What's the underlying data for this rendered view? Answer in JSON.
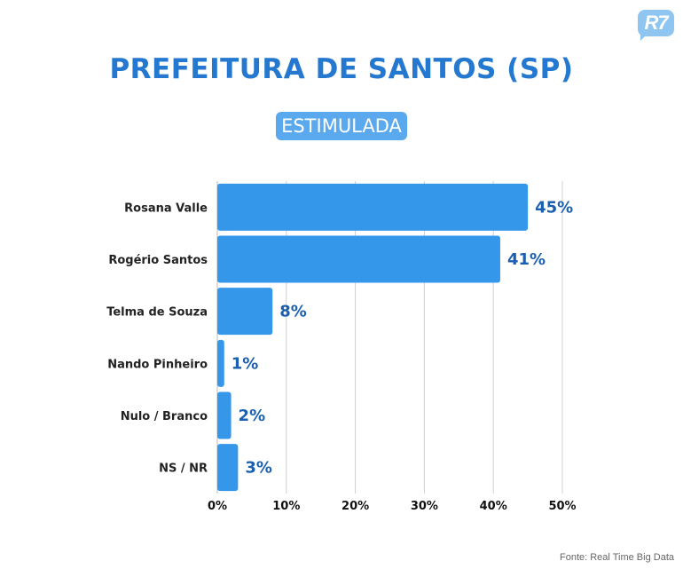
{
  "logo": {
    "text": "R7"
  },
  "title": "PREFEITURA DE SANTOS (SP)",
  "subtitle": "ESTIMULADA",
  "source": "Fonte: Real Time Big Data",
  "colors": {
    "bar": "#3597ea",
    "title": "#2478d0",
    "label": "#1a5fb0",
    "grid": "#d0d0d0"
  },
  "chart_data": {
    "type": "bar",
    "orientation": "horizontal",
    "title": "PREFEITURA DE SANTOS (SP)",
    "subtitle": "ESTIMULADA",
    "categories": [
      "Rosana Valle",
      "Rogério Santos",
      "Telma de Souza",
      "Nando Pinheiro",
      "Nulo / Branco",
      "NS / NR"
    ],
    "values": [
      45,
      41,
      8,
      1,
      2,
      3
    ],
    "value_labels": [
      "45%",
      "41%",
      "8%",
      "1%",
      "2%",
      "3%"
    ],
    "xlim": [
      0,
      50
    ],
    "ticks": [
      0,
      10,
      20,
      30,
      40,
      50
    ],
    "tick_labels": [
      "0%",
      "10%",
      "20%",
      "30%",
      "40%",
      "50%"
    ],
    "grid": true,
    "xlabel": "",
    "ylabel": ""
  }
}
